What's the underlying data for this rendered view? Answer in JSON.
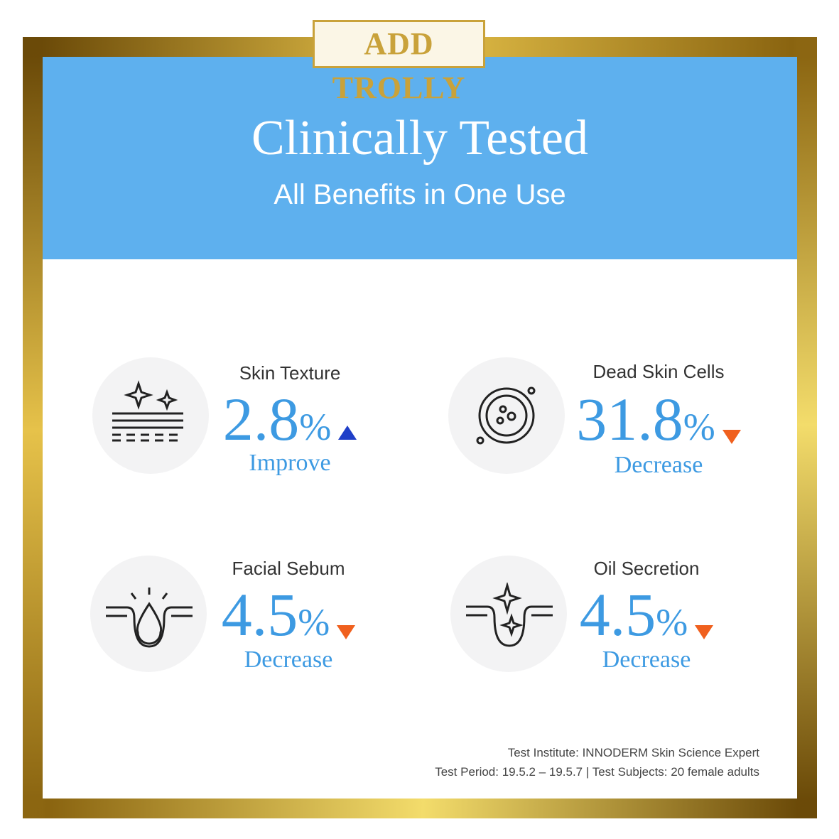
{
  "logo": "ADD TROLLY",
  "header": {
    "title": "Clinically Tested",
    "subtitle": "All Benefits in One Use"
  },
  "items": [
    {
      "label": "Skin Texture",
      "value": 2.8,
      "unit": "%",
      "result": "Improve",
      "direction": "up",
      "arrow_color": "#1f3fc8"
    },
    {
      "label": "Dead Skin Cells",
      "value": 31.8,
      "unit": "%",
      "result": "Decrease",
      "direction": "down",
      "arrow_color": "#f0601e"
    },
    {
      "label": "Facial Sebum",
      "value": 4.5,
      "unit": "%",
      "result": "Decrease",
      "direction": "down",
      "arrow_color": "#f0601e"
    },
    {
      "label": "Oil Secretion",
      "value": 4.5,
      "unit": "%",
      "result": "Decrease",
      "direction": "down",
      "arrow_color": "#f0601e"
    }
  ],
  "footer": {
    "line1": "Test Institute: INNODERM Skin Science Expert",
    "line2": "Test Period: 19.5.2 – 19.5.7 | Test Subjects: 20 female adults"
  }
}
